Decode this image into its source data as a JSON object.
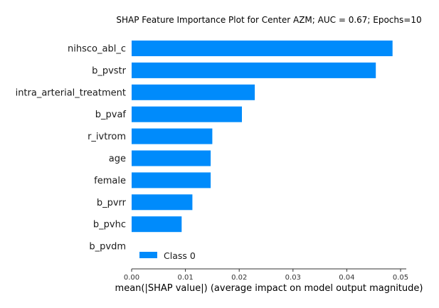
{
  "chart_data": {
    "type": "bar",
    "orientation": "horizontal",
    "title": "SHAP Feature Importance Plot for Center AZM; AUC = 0.67; Epochs=10",
    "xlabel": "mean(|SHAP value|) (average impact on model output magnitude)",
    "ylabel": "",
    "categories": [
      "nihsco_abl_c",
      "b_pvstr",
      "intra_arterial_treatment",
      "b_pvaf",
      "r_ivtrom",
      "age",
      "female",
      "b_pvrr",
      "b_pvhc",
      "b_pvdm"
    ],
    "series": [
      {
        "name": "Class 0",
        "color": "#008bfb",
        "values": [
          0.0485,
          0.0454,
          0.0229,
          0.0205,
          0.015,
          0.0147,
          0.0147,
          0.0113,
          0.0093,
          0.0
        ]
      }
    ],
    "xlim": [
      0,
      0.05
    ],
    "xticks": [
      "0.00",
      "0.01",
      "0.02",
      "0.03",
      "0.04",
      "0.05"
    ],
    "grid": false,
    "legend_position": "lower-left"
  }
}
